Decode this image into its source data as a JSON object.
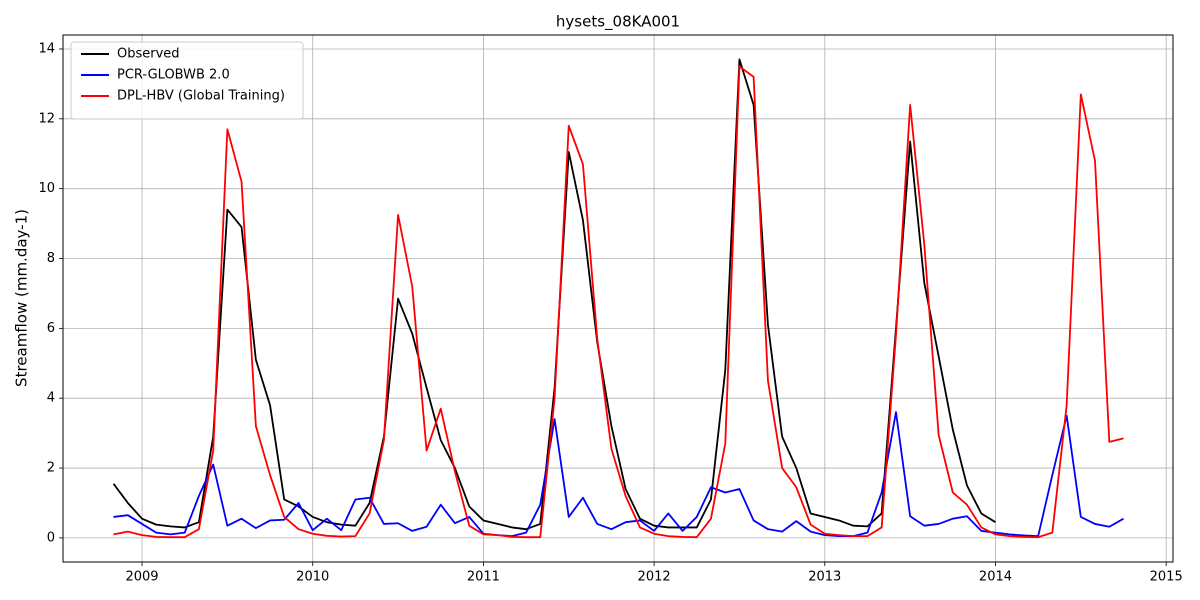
{
  "chart_data": {
    "type": "line",
    "title": "hysets_08KA001",
    "y_label": "Streamflow (mm.day-1)",
    "x": [
      2008.833,
      2008.917,
      2009,
      2009.083,
      2009.167,
      2009.25,
      2009.333,
      2009.417,
      2009.5,
      2009.583,
      2009.667,
      2009.75,
      2009.833,
      2009.917,
      2010,
      2010.083,
      2010.167,
      2010.25,
      2010.333,
      2010.417,
      2010.5,
      2010.583,
      2010.667,
      2010.75,
      2010.833,
      2010.917,
      2011,
      2011.083,
      2011.167,
      2011.25,
      2011.333,
      2011.417,
      2011.5,
      2011.583,
      2011.667,
      2011.75,
      2011.833,
      2011.917,
      2012,
      2012.083,
      2012.167,
      2012.25,
      2012.333,
      2012.417,
      2012.5,
      2012.583,
      2012.667,
      2012.75,
      2012.833,
      2012.917,
      2013,
      2013.083,
      2013.167,
      2013.25,
      2013.333,
      2013.417,
      2013.5,
      2013.583,
      2013.667,
      2013.75,
      2013.833,
      2013.917,
      2014,
      2014.083,
      2014.167,
      2014.25,
      2014.333,
      2014.417,
      2014.5,
      2014.583,
      2014.667,
      2014.75
    ],
    "series": [
      {
        "name": "Observed",
        "color": "#000000",
        "values": [
          1.55,
          1.0,
          0.55,
          0.38,
          0.33,
          0.3,
          0.45,
          2.9,
          9.4,
          8.9,
          5.1,
          3.8,
          1.1,
          0.9,
          0.6,
          0.45,
          0.38,
          0.35,
          1.0,
          2.9,
          6.85,
          5.85,
          4.3,
          2.8,
          2.0,
          0.9,
          0.5,
          0.4,
          0.3,
          0.25,
          0.4,
          4.3,
          11.05,
          9.1,
          5.6,
          3.2,
          1.4,
          0.55,
          0.35,
          0.3,
          0.3,
          0.3,
          1.1,
          4.8,
          13.7,
          12.4,
          6.1,
          2.9,
          2.0,
          0.7,
          0.6,
          0.5,
          0.35,
          0.33,
          0.7,
          6.0,
          11.35,
          7.3,
          5.2,
          3.1,
          1.5,
          0.7,
          0.45,
          null,
          null,
          null,
          null,
          null,
          null,
          null,
          null,
          null
        ]
      },
      {
        "name": "PCR-GLOBWB 2.0",
        "color": "#0000ff",
        "values": [
          0.6,
          0.65,
          0.4,
          0.15,
          0.1,
          0.15,
          1.2,
          2.1,
          0.35,
          0.55,
          0.28,
          0.5,
          0.52,
          1.0,
          0.22,
          0.55,
          0.22,
          1.1,
          1.15,
          0.4,
          0.42,
          0.2,
          0.32,
          0.95,
          0.42,
          0.6,
          0.12,
          0.08,
          0.05,
          0.15,
          0.95,
          3.4,
          0.6,
          1.15,
          0.4,
          0.25,
          0.45,
          0.5,
          0.2,
          0.7,
          0.2,
          0.6,
          1.45,
          1.3,
          1.4,
          0.5,
          0.25,
          0.18,
          0.48,
          0.18,
          0.08,
          0.05,
          0.05,
          0.15,
          1.3,
          3.6,
          0.62,
          0.35,
          0.4,
          0.55,
          0.62,
          0.2,
          0.15,
          0.1,
          0.07,
          0.05,
          1.8,
          3.5,
          0.6,
          0.4,
          0.32,
          0.55
        ]
      },
      {
        "name": "DPL-HBV (Global Training)",
        "color": "#ff0000",
        "values": [
          0.1,
          0.18,
          0.08,
          0.03,
          0.02,
          0.02,
          0.25,
          2.5,
          11.7,
          10.2,
          3.2,
          1.8,
          0.6,
          0.25,
          0.12,
          0.06,
          0.04,
          0.05,
          0.7,
          2.8,
          9.25,
          7.2,
          2.5,
          3.7,
          1.9,
          0.35,
          0.1,
          0.08,
          0.03,
          0.02,
          0.02,
          4.0,
          11.8,
          10.7,
          5.7,
          2.55,
          1.2,
          0.3,
          0.12,
          0.05,
          0.03,
          0.02,
          0.55,
          2.7,
          13.5,
          13.2,
          4.5,
          2.0,
          1.45,
          0.38,
          0.12,
          0.08,
          0.05,
          0.05,
          0.3,
          5.8,
          12.4,
          8.4,
          2.95,
          1.3,
          0.95,
          0.3,
          0.1,
          0.05,
          0.03,
          0.02,
          0.15,
          3.8,
          12.7,
          10.8,
          2.75,
          2.85
        ]
      }
    ],
    "xlim": [
      2008.537,
      2015.04
    ],
    "xticks": [
      2009,
      2010,
      2011,
      2012,
      2013,
      2014,
      2015
    ],
    "ylim": [
      -0.69,
      14.4
    ],
    "yticks": [
      0,
      2,
      4,
      6,
      8,
      10,
      12,
      14
    ],
    "grid": true,
    "legend": "upper left"
  }
}
